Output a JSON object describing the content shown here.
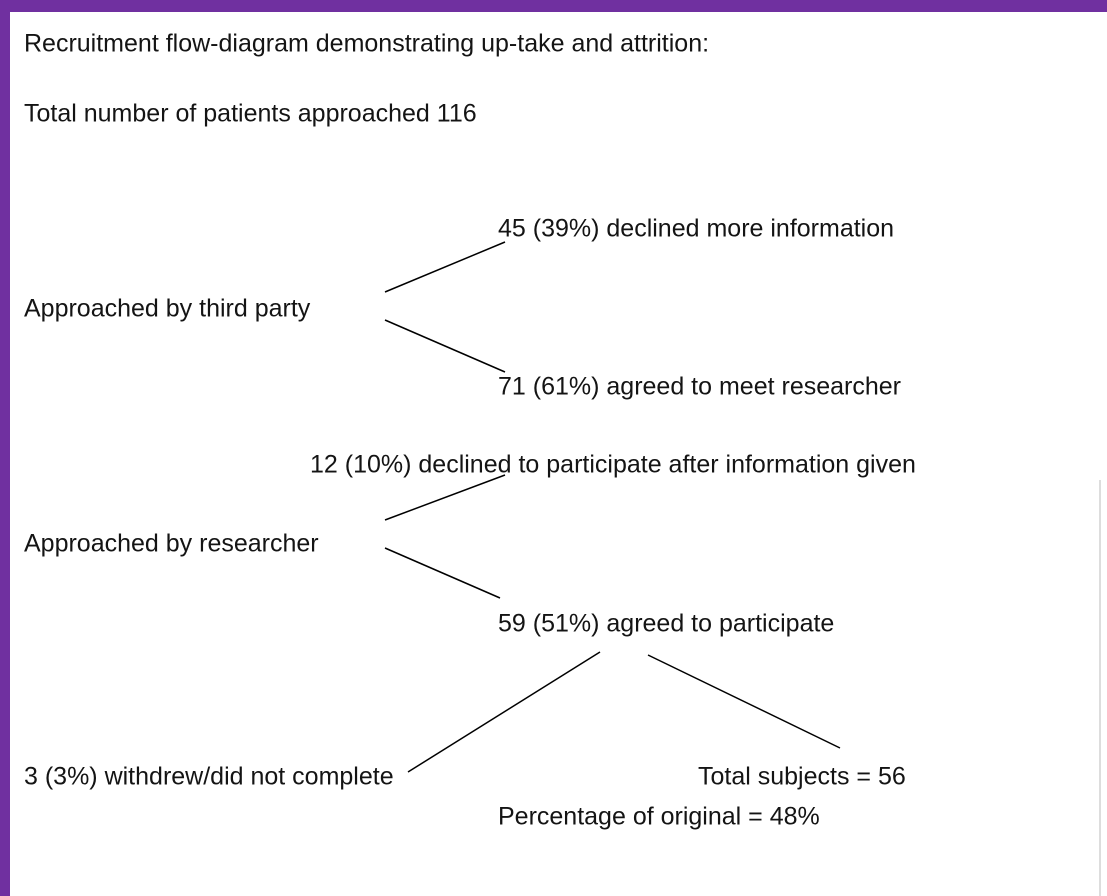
{
  "title": "Recruitment flow-diagram demonstrating up-take and attrition:",
  "total_approached": "Total number of patients approached 116",
  "stages": [
    {
      "label": "Approached by third party",
      "upper": "45 (39%) declined more information",
      "lower": "71 (61%) agreed to meet researcher"
    },
    {
      "label": "Approached by researcher",
      "upper": "12 (10%) declined to participate after information given",
      "lower": "59 (51%) agreed to participate"
    }
  ],
  "outcomes": {
    "withdrew": "3 (3%) withdrew/did not complete",
    "total_subjects": "Total subjects = 56",
    "percentage": "Percentage of original = 48%"
  }
}
